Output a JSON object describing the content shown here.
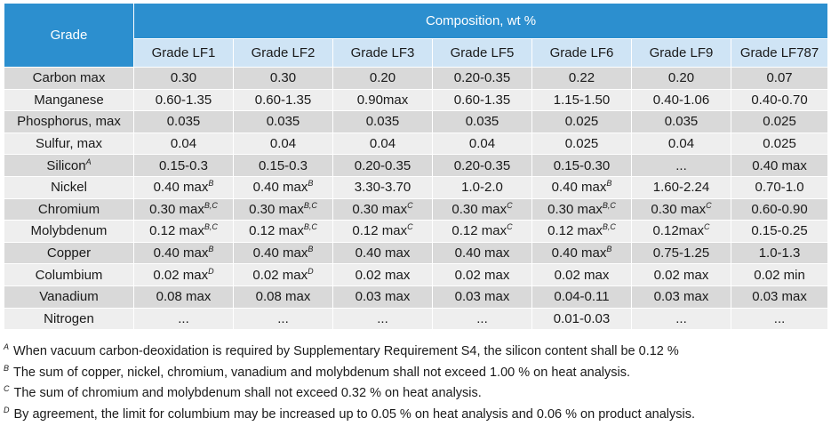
{
  "header": {
    "grade_label": "Grade",
    "composition_label": "Composition, wt %",
    "grades": [
      "Grade LF1",
      "Grade LF2",
      "Grade LF3",
      "Grade LF5",
      "Grade LF6",
      "Grade LF9",
      "Grade LF787"
    ]
  },
  "rows": [
    {
      "element": "Carbon max",
      "element_sup": "",
      "cells": [
        [
          "0.30",
          ""
        ],
        [
          "0.30",
          ""
        ],
        [
          "0.20",
          ""
        ],
        [
          "0.20-0.35",
          ""
        ],
        [
          "0.22",
          ""
        ],
        [
          "0.20",
          ""
        ],
        [
          "0.07",
          ""
        ]
      ]
    },
    {
      "element": "Manganese",
      "element_sup": "",
      "cells": [
        [
          "0.60-1.35",
          ""
        ],
        [
          "0.60-1.35",
          ""
        ],
        [
          "0.90max",
          ""
        ],
        [
          "0.60-1.35",
          ""
        ],
        [
          "1.15-1.50",
          ""
        ],
        [
          "0.40-1.06",
          ""
        ],
        [
          "0.40-0.70",
          ""
        ]
      ]
    },
    {
      "element": "Phosphorus, max",
      "element_sup": "",
      "cells": [
        [
          "0.035",
          ""
        ],
        [
          "0.035",
          ""
        ],
        [
          "0.035",
          ""
        ],
        [
          "0.035",
          ""
        ],
        [
          "0.025",
          ""
        ],
        [
          "0.035",
          ""
        ],
        [
          "0.025",
          ""
        ]
      ]
    },
    {
      "element": "Sulfur, max",
      "element_sup": "",
      "cells": [
        [
          "0.04",
          ""
        ],
        [
          "0.04",
          ""
        ],
        [
          "0.04",
          ""
        ],
        [
          "0.04",
          ""
        ],
        [
          "0.025",
          ""
        ],
        [
          "0.04",
          ""
        ],
        [
          "0.025",
          ""
        ]
      ]
    },
    {
      "element": "Silicon",
      "element_sup": "A",
      "cells": [
        [
          "0.15-0.3",
          ""
        ],
        [
          "0.15-0.3",
          ""
        ],
        [
          "0.20-0.35",
          ""
        ],
        [
          "0.20-0.35",
          ""
        ],
        [
          "0.15-0.30",
          ""
        ],
        [
          "...",
          ""
        ],
        [
          "0.40 max",
          ""
        ]
      ]
    },
    {
      "element": "Nickel",
      "element_sup": "",
      "cells": [
        [
          "0.40 max",
          "B"
        ],
        [
          "0.40 max",
          "B"
        ],
        [
          "3.30-3.70",
          ""
        ],
        [
          "1.0-2.0",
          ""
        ],
        [
          "0.40 max",
          "B"
        ],
        [
          "1.60-2.24",
          ""
        ],
        [
          "0.70-1.0",
          ""
        ]
      ]
    },
    {
      "element": "Chromium",
      "element_sup": "",
      "cells": [
        [
          "0.30 max",
          "B,C"
        ],
        [
          "0.30 max",
          "B,C"
        ],
        [
          "0.30 max",
          "C"
        ],
        [
          "0.30 max",
          "C"
        ],
        [
          "0.30 max",
          "B,C"
        ],
        [
          "0.30 max",
          "C"
        ],
        [
          "0.60-0.90",
          ""
        ]
      ]
    },
    {
      "element": "Molybdenum",
      "element_sup": "",
      "cells": [
        [
          "0.12 max",
          "B,C"
        ],
        [
          "0.12 max",
          "B,C"
        ],
        [
          "0.12 max",
          "C"
        ],
        [
          "0.12 max",
          "C"
        ],
        [
          "0.12 max",
          "B,C"
        ],
        [
          "0.12max",
          "C"
        ],
        [
          "0.15-0.25",
          ""
        ]
      ]
    },
    {
      "element": "Copper",
      "element_sup": "",
      "cells": [
        [
          "0.40 max",
          "B"
        ],
        [
          "0.40 max",
          "B"
        ],
        [
          "0.40 max",
          ""
        ],
        [
          "0.40 max",
          ""
        ],
        [
          "0.40 max",
          "B"
        ],
        [
          "0.75-1.25",
          ""
        ],
        [
          "1.0-1.3",
          ""
        ]
      ]
    },
    {
      "element": "Columbium",
      "element_sup": "",
      "cells": [
        [
          "0.02 max",
          "D"
        ],
        [
          "0.02 max",
          "D"
        ],
        [
          "0.02 max",
          ""
        ],
        [
          "0.02 max",
          ""
        ],
        [
          "0.02 max",
          ""
        ],
        [
          "0.02 max",
          ""
        ],
        [
          "0.02 min",
          ""
        ]
      ]
    },
    {
      "element": "Vanadium",
      "element_sup": "",
      "cells": [
        [
          "0.08 max",
          ""
        ],
        [
          "0.08 max",
          ""
        ],
        [
          "0.03 max",
          ""
        ],
        [
          "0.03 max",
          ""
        ],
        [
          "0.04-0.11",
          ""
        ],
        [
          "0.03 max",
          ""
        ],
        [
          "0.03 max",
          ""
        ]
      ]
    },
    {
      "element": "Nitrogen",
      "element_sup": "",
      "cells": [
        [
          "...",
          ""
        ],
        [
          "...",
          ""
        ],
        [
          "...",
          ""
        ],
        [
          "...",
          ""
        ],
        [
          "0.01-0.03",
          ""
        ],
        [
          "...",
          ""
        ],
        [
          "...",
          ""
        ]
      ]
    }
  ],
  "notes": [
    {
      "mark": "A",
      "text": "When vacuum carbon-deoxidation is required by Supplementary Requirement S4, the silicon content shall be 0.12 %"
    },
    {
      "mark": "B",
      "text": "The sum of copper, nickel, chromium, vanadium and molybdenum shall not exceed 1.00 % on heat analysis."
    },
    {
      "mark": "C",
      "text": "The sum of chromium and molybdenum shall not exceed 0.32 % on heat analysis."
    },
    {
      "mark": "D",
      "text": "By agreement, the limit for columbium may be increased up to 0.05 % on heat analysis and 0.06 % on product analysis."
    }
  ]
}
